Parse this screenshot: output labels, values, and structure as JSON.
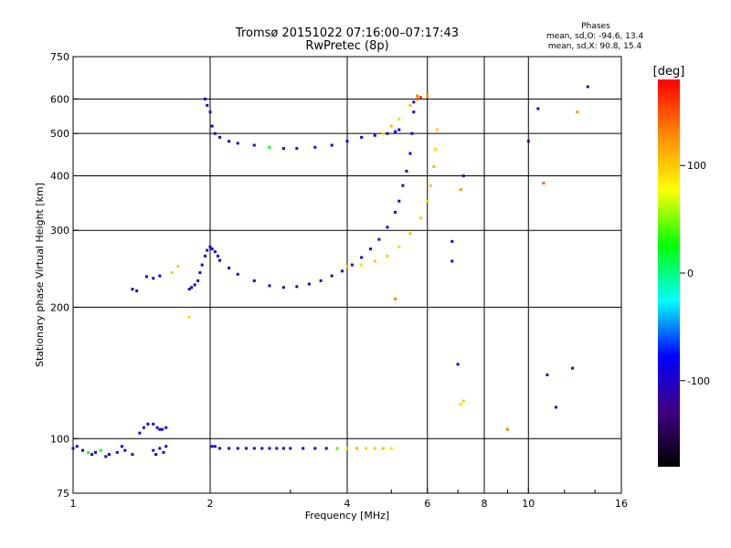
{
  "chart_data": {
    "type": "scatter",
    "title": "Tromsø 20151022 07:16:00–07:17:43",
    "subtitle": "RwPretec (8p)",
    "xlabel": "Frequency [MHz]",
    "ylabel": "Stationary phase Virtual Height [km]",
    "x_scale": "log",
    "y_scale": "log",
    "xlim": [
      1,
      16
    ],
    "ylim": [
      75,
      750
    ],
    "x_ticks": [
      1,
      2,
      4,
      6,
      8,
      10,
      16
    ],
    "x_tick_labels": [
      "1",
      "2",
      "4",
      "6",
      "8",
      "10",
      "16"
    ],
    "x_minor_ticks": [
      3,
      5,
      7,
      9,
      12,
      14
    ],
    "x_grid": [
      2,
      4,
      6,
      8,
      10
    ],
    "y_ticks": [
      75,
      100,
      200,
      300,
      400,
      500,
      600,
      750
    ],
    "y_tick_labels": [
      "75",
      "100",
      "200",
      "300",
      "400",
      "500",
      "600",
      "750"
    ],
    "y_grid": [
      100,
      200,
      300,
      400,
      500,
      600
    ],
    "grid": true,
    "phase_info": {
      "title": "Phases",
      "line_o": "mean, sd,O: -94.6, 13.4",
      "line_x": "mean, sd,X:  90.8, 15.4"
    },
    "colorbar": {
      "label": "[deg]",
      "range": [
        -180,
        180
      ],
      "ticks": [
        100,
        0,
        -100
      ],
      "tick_labels": [
        "100",
        "0",
        "-100"
      ],
      "colors": [
        "#ff0000",
        "#ff8800",
        "#ffff00",
        "#00ff00",
        "#00ffff",
        "#0000ff",
        "#400080",
        "#000000"
      ]
    },
    "series": [
      {
        "x": [
          1.0,
          1.02,
          1.05,
          1.08,
          1.1,
          1.12,
          1.15,
          1.18,
          1.2,
          1.25,
          1.28,
          1.3,
          1.35
        ],
        "y": [
          95,
          96,
          94,
          93,
          92,
          93,
          94,
          91,
          92,
          93,
          96,
          94,
          92
        ],
        "phase": [
          -110,
          -100,
          -95,
          20,
          -90,
          -105,
          30,
          -100,
          -95,
          -90,
          -100,
          -105,
          -95
        ]
      },
      {
        "x": [
          1.4,
          1.43,
          1.46,
          1.5,
          1.53,
          1.55,
          1.57,
          1.6
        ],
        "y": [
          103,
          106,
          108,
          108,
          106,
          105,
          105,
          106
        ],
        "phase": [
          -100,
          -105,
          -95,
          -100,
          -110,
          -90,
          -100,
          -95
        ]
      },
      {
        "x": [
          1.5,
          1.52,
          1.55,
          1.58,
          1.6
        ],
        "y": [
          94,
          92,
          95,
          93,
          96
        ],
        "phase": [
          -100,
          -90,
          -110,
          -95,
          -100
        ]
      },
      {
        "x": [
          1.35,
          1.38,
          1.45,
          1.5,
          1.55,
          1.65,
          1.7,
          1.8
        ],
        "y": [
          220,
          218,
          235,
          233,
          236,
          240,
          248,
          190
        ],
        "phase": [
          -105,
          -100,
          -95,
          -100,
          -90,
          60,
          100,
          90
        ]
      },
      {
        "x": [
          2.02,
          2.05,
          2.1,
          2.2,
          2.3,
          2.4,
          2.5,
          2.6,
          2.7,
          2.8,
          2.9,
          3.0,
          3.2,
          3.4,
          3.6,
          3.8,
          4.0,
          4.2,
          4.4,
          4.6,
          4.8,
          5.0
        ],
        "y": [
          96,
          96,
          95,
          95,
          95,
          95,
          95,
          95,
          95,
          95,
          95,
          95,
          95,
          95,
          95,
          95,
          95,
          95,
          95,
          95,
          95,
          95
        ],
        "phase": [
          -95,
          -100,
          -105,
          -100,
          -95,
          -100,
          -100,
          -95,
          -100,
          -95,
          -100,
          -100,
          -95,
          -100,
          -95,
          40,
          90,
          110,
          95,
          100,
          105,
          90
        ]
      },
      {
        "x": [
          1.8,
          1.82,
          1.85,
          1.88,
          1.9,
          1.92,
          1.95,
          1.97,
          2.0,
          2.02,
          2.05,
          2.08,
          2.1,
          2.2,
          2.3,
          2.5,
          2.7,
          2.9,
          3.1,
          3.3,
          3.5,
          3.7,
          3.9,
          4.1,
          4.3,
          4.5,
          4.7,
          4.9,
          5.1,
          5.2,
          5.3,
          5.4,
          5.5,
          5.55,
          5.6
        ],
        "y": [
          220,
          222,
          225,
          230,
          240,
          250,
          262,
          270,
          275,
          272,
          268,
          262,
          256,
          246,
          238,
          230,
          224,
          222,
          223,
          226,
          230,
          236,
          242,
          250,
          260,
          272,
          286,
          305,
          330,
          350,
          380,
          410,
          450,
          500,
          560
        ],
        "phase": [
          -100,
          -95,
          -105,
          -110,
          -100,
          -95,
          -100,
          -95,
          -100,
          -100,
          -95,
          -100,
          -105,
          -100,
          -95,
          -100,
          -105,
          -110,
          -105,
          -100,
          -100,
          -95,
          -90,
          -95,
          -90,
          -95,
          -100,
          -95,
          -100,
          -95,
          -100,
          -95,
          -90,
          -95,
          -100
        ]
      },
      {
        "x": [
          1.95,
          1.97,
          2.0,
          2.02,
          2.05,
          2.1,
          2.2,
          2.3,
          2.5,
          2.7,
          2.9,
          3.1,
          3.4,
          3.7,
          4.0,
          4.3,
          4.6,
          4.9,
          5.1,
          5.2
        ],
        "y": [
          600,
          580,
          560,
          520,
          500,
          490,
          480,
          475,
          470,
          465,
          462,
          462,
          465,
          470,
          480,
          490,
          495,
          500,
          505,
          510
        ],
        "phase": [
          -100,
          -95,
          -105,
          -100,
          -95,
          -100,
          -105,
          -95,
          -100,
          20,
          -100,
          -95,
          -100,
          -95,
          -100,
          -95,
          -105,
          -100,
          -95,
          -100
        ]
      },
      {
        "x": [
          4.0,
          4.3,
          4.6,
          4.9,
          5.2,
          5.5,
          5.8,
          6.0,
          6.1,
          6.2,
          6.25,
          6.3
        ],
        "y": [
          248,
          250,
          255,
          262,
          275,
          295,
          320,
          350,
          380,
          420,
          460,
          510
        ],
        "phase": [
          100,
          95,
          105,
          100,
          95,
          105,
          100,
          95,
          100,
          110,
          95,
          100
        ]
      },
      {
        "x": [
          4.8,
          5.0,
          5.2,
          5.5,
          5.7
        ],
        "y": [
          500,
          520,
          540,
          580,
          610
        ],
        "phase": [
          100,
          105,
          95,
          110,
          130
        ]
      },
      {
        "x": [
          5.6,
          5.7,
          5.8,
          6.0,
          6.8,
          7.0,
          7.1,
          7.2,
          9.0,
          10.0,
          10.5,
          11.0,
          11.5,
          12.5,
          12.8,
          13.5,
          10.8,
          6.8,
          7.2,
          7.1,
          5.1
        ],
        "y": [
          590,
          600,
          605,
          610,
          255,
          148,
          120,
          122,
          105,
          480,
          570,
          140,
          118,
          145,
          560,
          640,
          385,
          283,
          400,
          372,
          209
        ],
        "phase": [
          -100,
          150,
          160,
          120,
          -95,
          -100,
          90,
          100,
          130,
          -130,
          -105,
          -110,
          -105,
          -120,
          120,
          -120,
          140,
          -100,
          -110,
          120,
          130
        ]
      }
    ]
  }
}
